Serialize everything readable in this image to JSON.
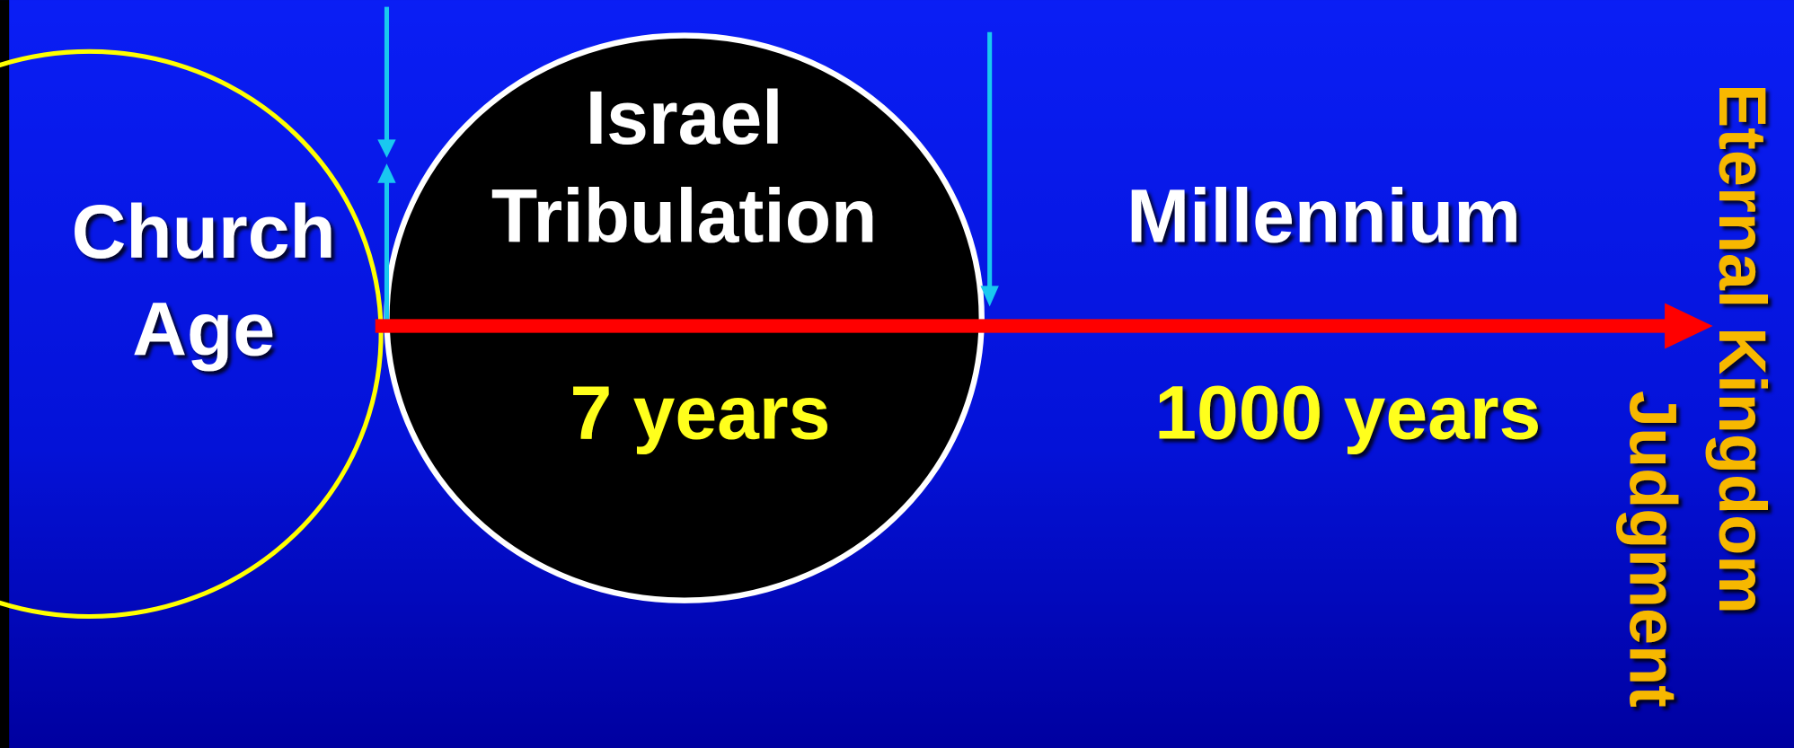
{
  "left_circle": {
    "label_lines": [
      "Church",
      "Age"
    ]
  },
  "middle_circle": {
    "label_lines": [
      "Israel",
      "Tribulation"
    ],
    "duration": "7 years"
  },
  "right_period": {
    "label": "Millennium",
    "duration": "1000 years"
  },
  "end_labels": {
    "kingdom": "Eternal Kingdom",
    "judgment": "Judgment"
  }
}
